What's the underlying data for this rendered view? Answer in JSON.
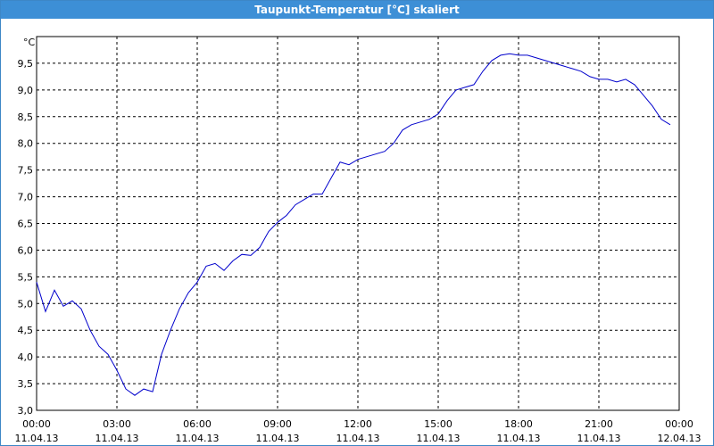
{
  "window": {
    "title": "Taupunkt-Temperatur [°C] skaliert"
  },
  "chart_data": {
    "type": "line",
    "title": "Taupunkt-Temperatur [°C] skaliert",
    "y_unit": "°C",
    "xlabel": "",
    "ylabel": "",
    "ylim": [
      3.0,
      10.0
    ],
    "y_ticks": [
      "3,0",
      "3,5",
      "4,0",
      "4,5",
      "5,0",
      "5,5",
      "6,0",
      "6,5",
      "7,0",
      "7,5",
      "8,0",
      "8,5",
      "9,0",
      "9,5"
    ],
    "x_ticks": [
      {
        "time": "00:00",
        "date": "11.04.13"
      },
      {
        "time": "03:00",
        "date": "11.04.13"
      },
      {
        "time": "06:00",
        "date": "11.04.13"
      },
      {
        "time": "09:00",
        "date": "11.04.13"
      },
      {
        "time": "12:00",
        "date": "11.04.13"
      },
      {
        "time": "15:00",
        "date": "11.04.13"
      },
      {
        "time": "18:00",
        "date": "11.04.13"
      },
      {
        "time": "21:00",
        "date": "11.04.13"
      },
      {
        "time": "00:00",
        "date": "12.04.13"
      }
    ],
    "grid": true,
    "line_color": "#0000cc",
    "x": [
      "00:00",
      "00:20",
      "00:40",
      "01:00",
      "01:20",
      "01:40",
      "02:00",
      "02:20",
      "02:40",
      "03:00",
      "03:20",
      "03:40",
      "04:00",
      "04:20",
      "04:40",
      "05:00",
      "05:20",
      "05:40",
      "06:00",
      "06:20",
      "06:40",
      "07:00",
      "07:20",
      "07:40",
      "08:00",
      "08:20",
      "08:40",
      "09:00",
      "09:20",
      "09:40",
      "10:00",
      "10:20",
      "10:40",
      "11:00",
      "11:20",
      "11:40",
      "12:00",
      "12:20",
      "12:40",
      "13:00",
      "13:20",
      "13:40",
      "14:00",
      "14:20",
      "14:40",
      "15:00",
      "15:20",
      "15:40",
      "16:00",
      "16:20",
      "16:40",
      "17:00",
      "17:20",
      "17:40",
      "18:00",
      "18:20",
      "18:40",
      "19:00",
      "19:20",
      "19:40",
      "20:00",
      "20:20",
      "20:40",
      "21:00",
      "21:20",
      "21:40",
      "22:00",
      "22:20",
      "22:40",
      "23:00",
      "23:20",
      "23:40"
    ],
    "values": [
      5.4,
      4.85,
      5.25,
      4.95,
      5.05,
      4.9,
      4.5,
      4.2,
      4.05,
      3.75,
      3.4,
      3.28,
      3.4,
      3.35,
      4.05,
      4.5,
      4.9,
      5.2,
      5.4,
      5.7,
      5.75,
      5.62,
      5.8,
      5.92,
      5.9,
      6.05,
      6.35,
      6.52,
      6.65,
      6.85,
      6.95,
      7.05,
      7.05,
      7.35,
      7.65,
      7.6,
      7.7,
      7.75,
      7.8,
      7.85,
      8.0,
      8.25,
      8.35,
      8.4,
      8.45,
      8.55,
      8.8,
      9.0,
      9.05,
      9.1,
      9.35,
      9.55,
      9.65,
      9.68,
      9.65,
      9.65,
      9.6,
      9.55,
      9.5,
      9.45,
      9.4,
      9.35,
      9.25,
      9.2,
      9.2,
      9.15,
      9.2,
      9.1,
      8.9,
      8.7,
      8.45,
      8.35
    ]
  }
}
